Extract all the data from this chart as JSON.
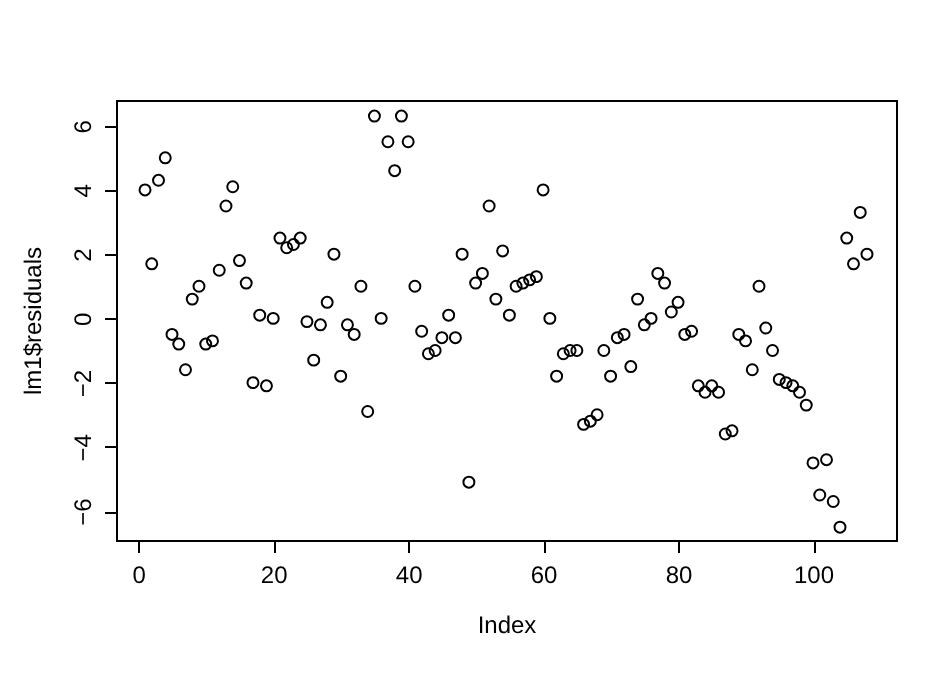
{
  "chart_data": {
    "type": "scatter",
    "xlabel": "Index",
    "ylabel": "lm1$residuals",
    "x": [
      1,
      2,
      3,
      4,
      5,
      6,
      7,
      8,
      9,
      10,
      11,
      12,
      13,
      14,
      15,
      16,
      17,
      18,
      19,
      20,
      21,
      22,
      23,
      24,
      25,
      26,
      27,
      28,
      29,
      30,
      31,
      32,
      33,
      34,
      35,
      36,
      37,
      38,
      39,
      40,
      41,
      42,
      43,
      44,
      45,
      46,
      47,
      48,
      49,
      50,
      51,
      52,
      53,
      54,
      55,
      56,
      57,
      58,
      59,
      60,
      61,
      62,
      63,
      64,
      65,
      66,
      67,
      68,
      69,
      70,
      71,
      72,
      73,
      74,
      75,
      76,
      77,
      78,
      79,
      80,
      81,
      82,
      83,
      84,
      85,
      86,
      87,
      88,
      89,
      90,
      91,
      92,
      93,
      94,
      95,
      96,
      97,
      98,
      99,
      100,
      101,
      102,
      103,
      104,
      105,
      106,
      107,
      108
    ],
    "series": [
      {
        "color": "#000000",
        "values": [
          4.0,
          1.7,
          4.3,
          5.0,
          -0.5,
          -0.8,
          -1.6,
          0.6,
          1.0,
          -0.8,
          -0.7,
          1.5,
          3.5,
          4.1,
          1.8,
          1.1,
          -2.0,
          0.1,
          -2.1,
          0.0,
          2.5,
          2.2,
          2.3,
          2.5,
          -0.1,
          -1.3,
          -0.2,
          0.5,
          2.0,
          -1.8,
          -0.2,
          -0.5,
          1.0,
          -2.9,
          6.3,
          0.0,
          5.5,
          4.6,
          6.3,
          5.5,
          1.0,
          -0.4,
          -1.1,
          -1.0,
          -0.6,
          0.1,
          -0.6,
          2.0,
          -5.1,
          1.1,
          1.4,
          3.5,
          0.6,
          2.1,
          0.1,
          1.0,
          1.1,
          1.2,
          1.3,
          4.0,
          0.0,
          -1.8,
          -1.1,
          -1.0,
          -1.0,
          -3.3,
          -3.2,
          -3.0,
          -1.0,
          -1.8,
          -0.6,
          -0.5,
          -1.5,
          0.6,
          -0.2,
          0.0,
          1.4,
          1.1,
          0.2,
          0.5,
          -0.5,
          -0.4,
          -2.1,
          -2.3,
          -2.1,
          -2.3,
          -3.6,
          -3.5,
          -0.5,
          -0.7,
          -1.6,
          1.0,
          -0.3,
          -1.0,
          -1.9,
          -2.0,
          -2.1,
          -2.3,
          -2.7,
          -4.5,
          -5.5,
          -4.4,
          -5.7,
          -6.5,
          2.5,
          1.7,
          3.3,
          2.0
        ]
      }
    ],
    "xlim": [
      -3.3,
      112.3
    ],
    "ylim": [
      -6.9,
      6.8
    ],
    "xticks": [
      0,
      20,
      40,
      60,
      80,
      100
    ],
    "yticks": [
      -6,
      -4,
      -2,
      0,
      2,
      4,
      6
    ],
    "marker": "circle",
    "grid": false
  }
}
